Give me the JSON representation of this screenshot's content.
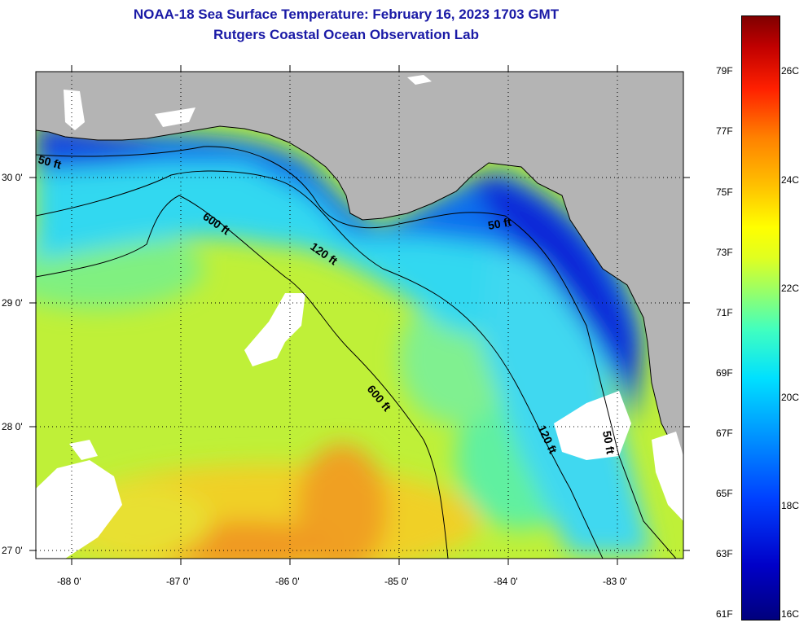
{
  "title_line1": "NOAA-18 Sea Surface Temperature:  February 16, 2023 1703 GMT",
  "title_line2": "Rutgers Coastal Ocean Observation Lab",
  "lat_labels": [
    "30 0'",
    "29 0'",
    "28 0'",
    "27 0'"
  ],
  "lon_labels": [
    "-88 0'",
    "-87 0'",
    "-86 0'",
    "-85 0'",
    "-84 0'",
    "-83 0'"
  ],
  "contour_labels": [
    "50 ft",
    "600 ft",
    "120 ft",
    "50 ft",
    "600 ft",
    "120 ft",
    "50 ft"
  ],
  "colorbar_f": [
    "79F",
    "77F",
    "75F",
    "73F",
    "71F",
    "69F",
    "67F",
    "65F",
    "63F",
    "61F"
  ],
  "colorbar_c": [
    "26C",
    "24C",
    "22C",
    "20C",
    "18C",
    "16C"
  ],
  "colors": {
    "land": "#b4b4b4",
    "cloud": "#ffffff",
    "title": "#1a1aa6",
    "cold": "#0a28d8",
    "mid": "#22c4f0",
    "warm": "#d8f030",
    "hot": "#f0a020"
  }
}
